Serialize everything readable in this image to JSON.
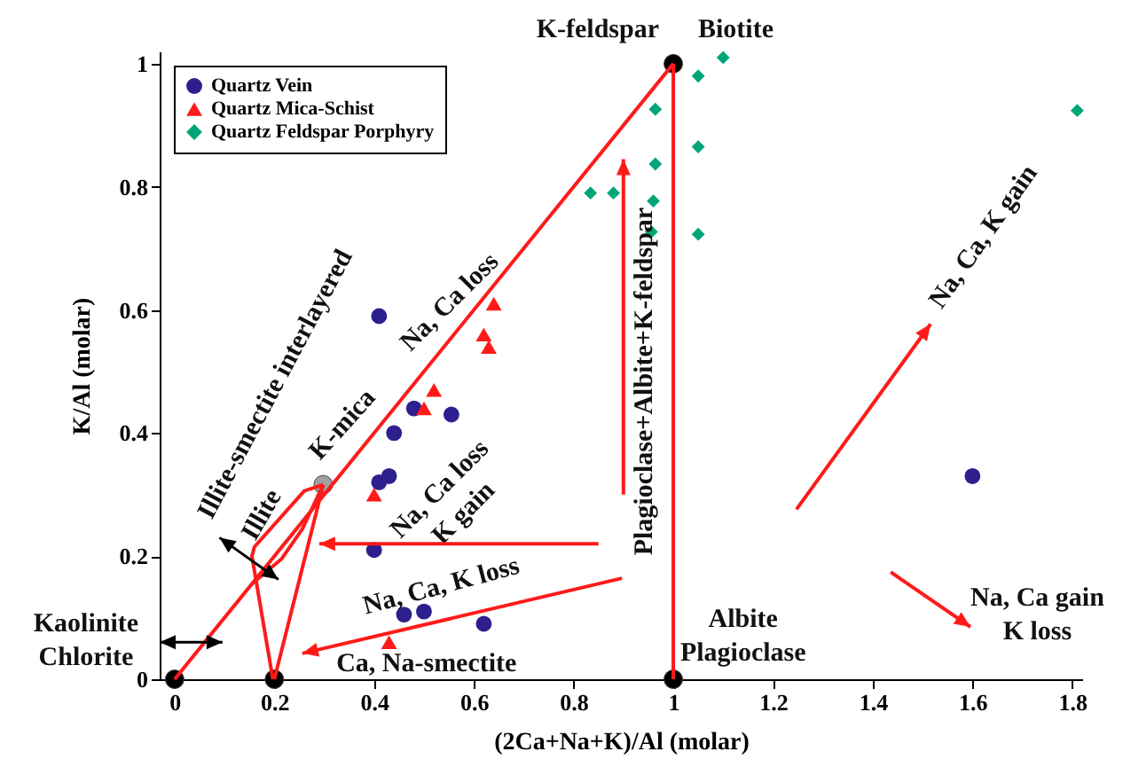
{
  "chart_data": {
    "type": "scatter",
    "xlabel": "(2Ca+Na+K)/Al (molar)",
    "ylabel": "K/Al (molar)",
    "xlim": [
      -0.03,
      1.82
    ],
    "ylim": [
      0,
      1.02
    ],
    "xticks": [
      0,
      0.2,
      0.4,
      0.6,
      0.8,
      1,
      1.2,
      1.4,
      1.6,
      1.8
    ],
    "yticks": [
      0,
      0.2,
      0.4,
      0.6,
      0.8,
      1
    ],
    "grid": false,
    "legend": "top left",
    "series": [
      {
        "name": "Quartz Vein",
        "color": "#2e1f8f",
        "marker": "circle",
        "x": [
          0.41,
          0.48,
          0.555,
          0.44,
          0.41,
          0.43,
          0.4,
          0.46,
          0.5,
          0.62,
          1.6
        ],
        "values": [
          0.59,
          0.44,
          0.43,
          0.4,
          0.32,
          0.33,
          0.21,
          0.105,
          0.11,
          0.09,
          0.33
        ]
      },
      {
        "name": "Quartz Mica-Schist",
        "color": "#ff1a1a",
        "marker": "triangle",
        "x": [
          0.64,
          0.62,
          0.63,
          0.52,
          0.5,
          0.4,
          0.43
        ],
        "values": [
          0.61,
          0.56,
          0.54,
          0.47,
          0.44,
          0.3,
          0.06
        ]
      },
      {
        "name": "Quartz Feldspar Porphyry",
        "color": "#00a678",
        "marker": "diamond",
        "x": [
          1.1,
          1.05,
          0.964,
          1.05,
          0.964,
          0.834,
          0.88,
          0.96,
          0.956,
          1.05,
          1.81
        ],
        "values": [
          1.01,
          0.98,
          0.926,
          0.865,
          0.837,
          0.79,
          0.79,
          0.777,
          0.727,
          0.723,
          0.924
        ]
      },
      {
        "color": "#ff1a1a",
        "type": "line",
        "x": [
          0,
          1
        ],
        "values": [
          0,
          1
        ]
      },
      {
        "color": "#ff1a1a",
        "type": "line",
        "x": [
          1,
          1
        ],
        "values": [
          1,
          0
        ]
      },
      {
        "color": "#ff1a1a",
        "type": "line",
        "x": [
          0.2,
          0.298
        ],
        "values": [
          0,
          0.316
        ]
      },
      {
        "color": "#ff1a1a",
        "type": "line",
        "x": [
          0.298,
          0.26,
          0.16,
          0.155,
          0.197
        ],
        "values": [
          0.316,
          0.306,
          0.215,
          0.2,
          0
        ]
      },
      {
        "color": "#ff1a1a",
        "type": "line",
        "x": [
          0.298,
          0.256,
          0.215,
          0.155
        ],
        "values": [
          0.316,
          0.244,
          0.196,
          0.155
        ]
      },
      {
        "color": "#000000",
        "marker": "circle",
        "x": [
          0,
          0.2,
          1,
          1
        ],
        "values": [
          0,
          0,
          0,
          1
        ]
      },
      {
        "color": "#a0a0a0",
        "marker": "circle",
        "x": [
          0.298
        ],
        "values": [
          0.316
        ]
      }
    ],
    "annotations": [
      "K-feldspar",
      "Biotite",
      "Albite\nPlagioclase",
      "Kaolinite\nChlorite",
      "Ca, Na-smectite",
      "Na, Ca, K loss",
      "Na, Ca loss\nK gain",
      "Na, Ca loss",
      "Illite-smectite interlayered",
      "Illite",
      "K-mica",
      "Plagioclase+Albite+K-feldspar",
      "Na, Ca, K gain",
      "Na, Ca gain\nK loss"
    ]
  }
}
